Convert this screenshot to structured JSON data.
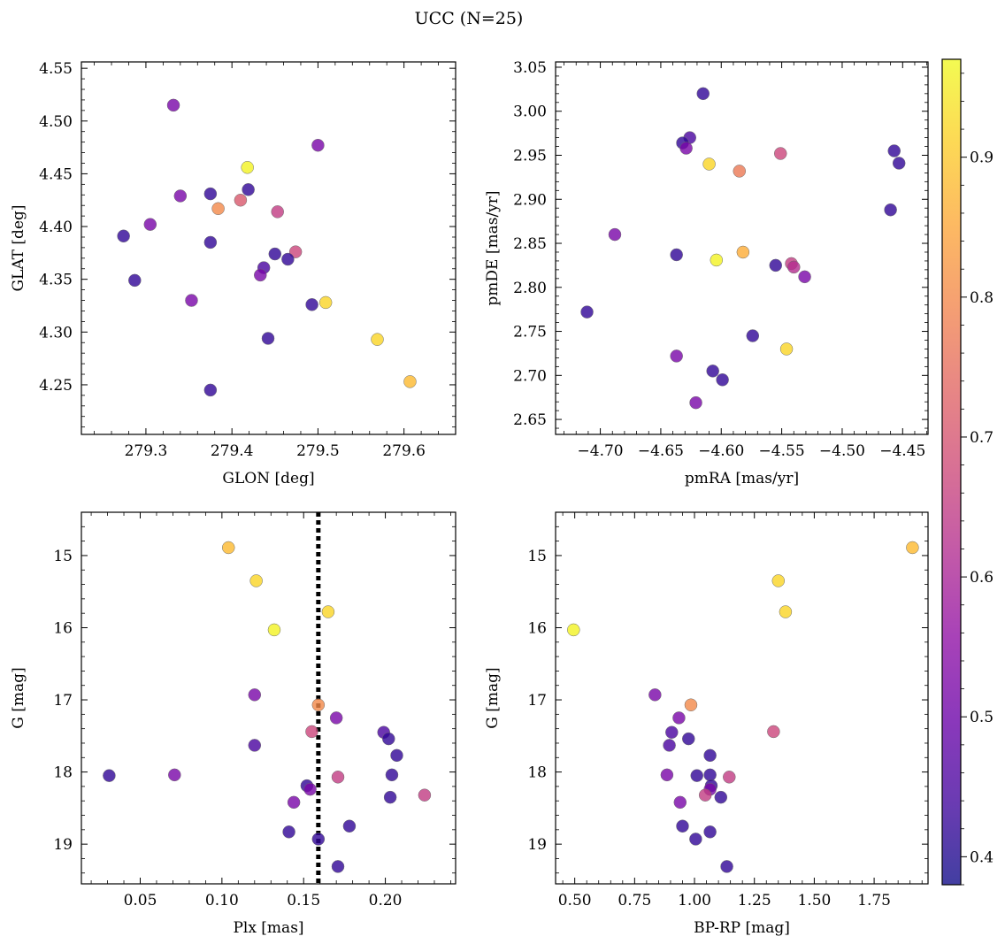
{
  "figure": {
    "title": "UCC (N=25)"
  },
  "colorbar": {
    "colormap": "plasma",
    "range": [
      0.38,
      0.97
    ],
    "ticks": [
      0.4,
      0.5,
      0.6,
      0.7,
      0.8,
      0.9
    ],
    "tick_labels": [
      "0.4",
      "0.5",
      "0.6",
      "0.7",
      "0.8",
      "0.9"
    ]
  },
  "chart_data": [
    {
      "type": "scatter",
      "id": "glon-glat",
      "xlabel": "GLON [deg]",
      "ylabel": "GLAT [deg]",
      "xlim": [
        279.225,
        279.66
      ],
      "ylim": [
        4.203,
        4.556
      ],
      "xticks": [
        279.3,
        279.4,
        279.5,
        279.6
      ],
      "xtick_labels": [
        "279.3",
        "279.4",
        "279.5",
        "279.6"
      ],
      "yticks": [
        4.25,
        4.3,
        4.35,
        4.4,
        4.45,
        4.5,
        4.55
      ],
      "ytick_labels": [
        "4.25",
        "4.30",
        "4.35",
        "4.40",
        "4.45",
        "4.50",
        "4.55"
      ],
      "points": [
        {
          "x": 279.332,
          "y": 4.515,
          "c": 0.52
        },
        {
          "x": 279.5,
          "y": 4.477,
          "c": 0.52
        },
        {
          "x": 279.418,
          "y": 4.456,
          "c": 0.96
        },
        {
          "x": 279.375,
          "y": 4.431,
          "c": 0.42
        },
        {
          "x": 279.419,
          "y": 4.435,
          "c": 0.42
        },
        {
          "x": 279.34,
          "y": 4.429,
          "c": 0.52
        },
        {
          "x": 279.41,
          "y": 4.425,
          "c": 0.71
        },
        {
          "x": 279.384,
          "y": 4.417,
          "c": 0.8
        },
        {
          "x": 279.453,
          "y": 4.414,
          "c": 0.65
        },
        {
          "x": 279.305,
          "y": 4.402,
          "c": 0.52
        },
        {
          "x": 279.274,
          "y": 4.391,
          "c": 0.42
        },
        {
          "x": 279.375,
          "y": 4.385,
          "c": 0.42
        },
        {
          "x": 279.474,
          "y": 4.376,
          "c": 0.67
        },
        {
          "x": 279.45,
          "y": 4.374,
          "c": 0.42
        },
        {
          "x": 279.465,
          "y": 4.369,
          "c": 0.42
        },
        {
          "x": 279.437,
          "y": 4.361,
          "c": 0.45
        },
        {
          "x": 279.433,
          "y": 4.354,
          "c": 0.52
        },
        {
          "x": 279.287,
          "y": 4.349,
          "c": 0.42
        },
        {
          "x": 279.353,
          "y": 4.33,
          "c": 0.52
        },
        {
          "x": 279.509,
          "y": 4.328,
          "c": 0.92
        },
        {
          "x": 279.493,
          "y": 4.326,
          "c": 0.42
        },
        {
          "x": 279.442,
          "y": 4.294,
          "c": 0.42
        },
        {
          "x": 279.569,
          "y": 4.293,
          "c": 0.92
        },
        {
          "x": 279.607,
          "y": 4.253,
          "c": 0.88
        },
        {
          "x": 279.375,
          "y": 4.245,
          "c": 0.42
        }
      ]
    },
    {
      "type": "scatter",
      "id": "pmra-pmde",
      "xlabel": "pmRA [mas/yr]",
      "ylabel": "pmDE [mas/yr]",
      "xlim": [
        -4.737,
        -4.429
      ],
      "ylim": [
        2.633,
        3.056
      ],
      "xticks": [
        -4.7,
        -4.65,
        -4.6,
        -4.55,
        -4.5,
        -4.45
      ],
      "xtick_labels": [
        "−4.70",
        "−4.65",
        "−4.60",
        "−4.55",
        "−4.50",
        "−4.45"
      ],
      "yticks": [
        2.65,
        2.7,
        2.75,
        2.8,
        2.85,
        2.9,
        2.95,
        3.0,
        3.05
      ],
      "ytick_labels": [
        "2.65",
        "2.70",
        "2.75",
        "2.80",
        "2.85",
        "2.90",
        "2.95",
        "3.00",
        "3.05"
      ],
      "points": [
        {
          "x": -4.615,
          "y": 3.02,
          "c": 0.42
        },
        {
          "x": -4.626,
          "y": 2.97,
          "c": 0.45
        },
        {
          "x": -4.632,
          "y": 2.964,
          "c": 0.42
        },
        {
          "x": -4.629,
          "y": 2.958,
          "c": 0.52
        },
        {
          "x": -4.457,
          "y": 2.955,
          "c": 0.42
        },
        {
          "x": -4.551,
          "y": 2.952,
          "c": 0.67
        },
        {
          "x": -4.453,
          "y": 2.941,
          "c": 0.42
        },
        {
          "x": -4.61,
          "y": 2.94,
          "c": 0.92
        },
        {
          "x": -4.585,
          "y": 2.932,
          "c": 0.77
        },
        {
          "x": -4.46,
          "y": 2.888,
          "c": 0.42
        },
        {
          "x": -4.688,
          "y": 2.86,
          "c": 0.52
        },
        {
          "x": -4.582,
          "y": 2.84,
          "c": 0.86
        },
        {
          "x": -4.637,
          "y": 2.837,
          "c": 0.42
        },
        {
          "x": -4.604,
          "y": 2.831,
          "c": 0.96
        },
        {
          "x": -4.542,
          "y": 2.827,
          "c": 0.65
        },
        {
          "x": -4.555,
          "y": 2.825,
          "c": 0.42
        },
        {
          "x": -4.54,
          "y": 2.823,
          "c": 0.62
        },
        {
          "x": -4.531,
          "y": 2.812,
          "c": 0.52
        },
        {
          "x": -4.711,
          "y": 2.772,
          "c": 0.42
        },
        {
          "x": -4.574,
          "y": 2.745,
          "c": 0.42
        },
        {
          "x": -4.546,
          "y": 2.73,
          "c": 0.92
        },
        {
          "x": -4.637,
          "y": 2.722,
          "c": 0.52
        },
        {
          "x": -4.607,
          "y": 2.705,
          "c": 0.42
        },
        {
          "x": -4.599,
          "y": 2.695,
          "c": 0.42
        },
        {
          "x": -4.621,
          "y": 2.669,
          "c": 0.52
        }
      ]
    },
    {
      "type": "scatter",
      "id": "plx-g",
      "xlabel": "Plx [mas]",
      "ylabel": "G [mag]",
      "xlim": [
        0.014,
        0.243
      ],
      "ylim": [
        19.55,
        14.4
      ],
      "y_inverted": true,
      "xticks": [
        0.05,
        0.1,
        0.15,
        0.2
      ],
      "xtick_labels": [
        "0.05",
        "0.10",
        "0.15",
        "0.20"
      ],
      "yticks": [
        15,
        16,
        17,
        18,
        19
      ],
      "ytick_labels": [
        "15",
        "16",
        "17",
        "18",
        "19"
      ],
      "vline": {
        "x": 0.159,
        "style": "dotted"
      },
      "points": [
        {
          "x": 0.104,
          "y": 14.89,
          "c": 0.88
        },
        {
          "x": 0.121,
          "y": 15.35,
          "c": 0.92
        },
        {
          "x": 0.165,
          "y": 15.78,
          "c": 0.92
        },
        {
          "x": 0.132,
          "y": 16.03,
          "c": 0.96
        },
        {
          "x": 0.12,
          "y": 16.93,
          "c": 0.52
        },
        {
          "x": 0.159,
          "y": 17.07,
          "c": 0.8
        },
        {
          "x": 0.17,
          "y": 17.25,
          "c": 0.52
        },
        {
          "x": 0.155,
          "y": 17.44,
          "c": 0.67
        },
        {
          "x": 0.199,
          "y": 17.45,
          "c": 0.45
        },
        {
          "x": 0.202,
          "y": 17.54,
          "c": 0.42
        },
        {
          "x": 0.12,
          "y": 17.63,
          "c": 0.45
        },
        {
          "x": 0.207,
          "y": 17.77,
          "c": 0.42
        },
        {
          "x": 0.031,
          "y": 18.05,
          "c": 0.42
        },
        {
          "x": 0.071,
          "y": 18.04,
          "c": 0.52
        },
        {
          "x": 0.171,
          "y": 18.07,
          "c": 0.65
        },
        {
          "x": 0.204,
          "y": 18.04,
          "c": 0.42
        },
        {
          "x": 0.152,
          "y": 18.19,
          "c": 0.42
        },
        {
          "x": 0.154,
          "y": 18.24,
          "c": 0.52
        },
        {
          "x": 0.224,
          "y": 18.32,
          "c": 0.65
        },
        {
          "x": 0.203,
          "y": 18.35,
          "c": 0.42
        },
        {
          "x": 0.144,
          "y": 18.42,
          "c": 0.52
        },
        {
          "x": 0.178,
          "y": 18.75,
          "c": 0.42
        },
        {
          "x": 0.141,
          "y": 18.83,
          "c": 0.42
        },
        {
          "x": 0.159,
          "y": 18.93,
          "c": 0.42
        },
        {
          "x": 0.171,
          "y": 19.31,
          "c": 0.42
        }
      ]
    },
    {
      "type": "scatter",
      "id": "bprp-g",
      "xlabel": "BP-RP [mag]",
      "ylabel": "G [mag]",
      "xlim": [
        0.42,
        1.975
      ],
      "ylim": [
        19.55,
        14.4
      ],
      "y_inverted": true,
      "xticks": [
        0.5,
        0.75,
        1.0,
        1.25,
        1.5,
        1.75
      ],
      "xtick_labels": [
        "0.50",
        "0.75",
        "1.00",
        "1.25",
        "1.50",
        "1.75"
      ],
      "yticks": [
        15,
        16,
        17,
        18,
        19
      ],
      "ytick_labels": [
        "15",
        "16",
        "17",
        "18",
        "19"
      ],
      "points": [
        {
          "x": 1.91,
          "y": 14.89,
          "c": 0.88
        },
        {
          "x": 1.35,
          "y": 15.35,
          "c": 0.92
        },
        {
          "x": 1.38,
          "y": 15.78,
          "c": 0.92
        },
        {
          "x": 0.495,
          "y": 16.03,
          "c": 0.96
        },
        {
          "x": 0.835,
          "y": 16.93,
          "c": 0.52
        },
        {
          "x": 0.985,
          "y": 17.07,
          "c": 0.8
        },
        {
          "x": 0.935,
          "y": 17.25,
          "c": 0.52
        },
        {
          "x": 1.33,
          "y": 17.44,
          "c": 0.67
        },
        {
          "x": 0.905,
          "y": 17.45,
          "c": 0.45
        },
        {
          "x": 0.975,
          "y": 17.54,
          "c": 0.42
        },
        {
          "x": 0.895,
          "y": 17.63,
          "c": 0.45
        },
        {
          "x": 1.065,
          "y": 17.77,
          "c": 0.42
        },
        {
          "x": 1.01,
          "y": 18.05,
          "c": 0.42
        },
        {
          "x": 0.885,
          "y": 18.04,
          "c": 0.52
        },
        {
          "x": 1.145,
          "y": 18.07,
          "c": 0.65
        },
        {
          "x": 1.065,
          "y": 18.04,
          "c": 0.42
        },
        {
          "x": 1.07,
          "y": 18.19,
          "c": 0.42
        },
        {
          "x": 1.065,
          "y": 18.24,
          "c": 0.52
        },
        {
          "x": 1.045,
          "y": 18.32,
          "c": 0.65
        },
        {
          "x": 1.11,
          "y": 18.35,
          "c": 0.42
        },
        {
          "x": 0.94,
          "y": 18.42,
          "c": 0.52
        },
        {
          "x": 0.95,
          "y": 18.75,
          "c": 0.42
        },
        {
          "x": 1.065,
          "y": 18.83,
          "c": 0.42
        },
        {
          "x": 1.005,
          "y": 18.93,
          "c": 0.42
        },
        {
          "x": 1.135,
          "y": 19.31,
          "c": 0.42
        }
      ]
    }
  ]
}
